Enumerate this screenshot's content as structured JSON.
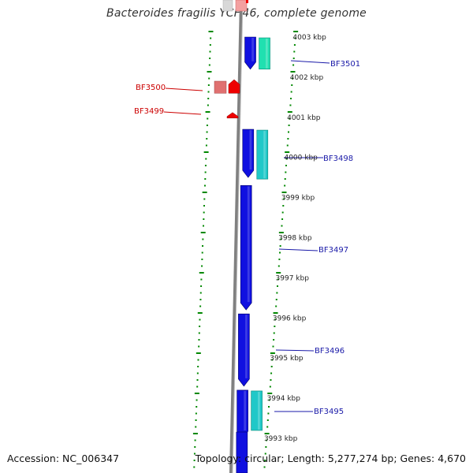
{
  "title": "Bacteroides fragilis YCH46, complete genome",
  "footer": {
    "accession": "Accession: NC_006347",
    "stats": "Topology: circular; Length: 5,277,274 bp; Genes: 4,670"
  },
  "colors": {
    "forward_gene": "#1010e0",
    "forward_rna": "#20e0b0",
    "forward_rna_alt": "#20c8c8",
    "reverse_gene": "#ee0000",
    "reverse_gene_light": "#e07070",
    "backbone": "#808080",
    "ticks": "#008800",
    "label_fwd": "#1a1aa8",
    "label_rev": "#cc0000"
  },
  "kbp_labels": [
    {
      "kbp": 4003,
      "text": "4003 kbp"
    },
    {
      "kbp": 4002,
      "text": "4002 kbp"
    },
    {
      "kbp": 4001,
      "text": "4001 kbp"
    },
    {
      "kbp": 4000,
      "text": "4000 kbp"
    },
    {
      "kbp": 3999,
      "text": "3999 kbp"
    },
    {
      "kbp": 3998,
      "text": "3998 kbp"
    },
    {
      "kbp": 3997,
      "text": "3997 kbp"
    },
    {
      "kbp": 3996,
      "text": "3996 kbp"
    },
    {
      "kbp": 3995,
      "text": "3995 kbp"
    },
    {
      "kbp": 3994,
      "text": "3994 kbp"
    },
    {
      "kbp": 3993,
      "text": "3993 kbp"
    }
  ],
  "genes": [
    {
      "name": "BF3501",
      "strand": "+",
      "start_kbp": 4002.2,
      "end_kbp": 4003.0
    },
    {
      "name": "BF3500",
      "strand": "-",
      "start_kbp": 4001.6,
      "end_kbp": 4001.9
    },
    {
      "name": "BF3499",
      "strand": "-",
      "start_kbp": 4001.0,
      "end_kbp": 4001.1
    },
    {
      "name": "BF3498",
      "strand": "+",
      "start_kbp": 3999.5,
      "end_kbp": 4000.7
    },
    {
      "name": "BF3497",
      "strand": "+",
      "start_kbp": 3996.2,
      "end_kbp": 3999.3
    },
    {
      "name": "BF3496",
      "strand": "+",
      "start_kbp": 3994.3,
      "end_kbp": 3996.1
    },
    {
      "name": "BF3495",
      "strand": "+",
      "start_kbp": 3993.0,
      "end_kbp": 3994.2
    }
  ]
}
